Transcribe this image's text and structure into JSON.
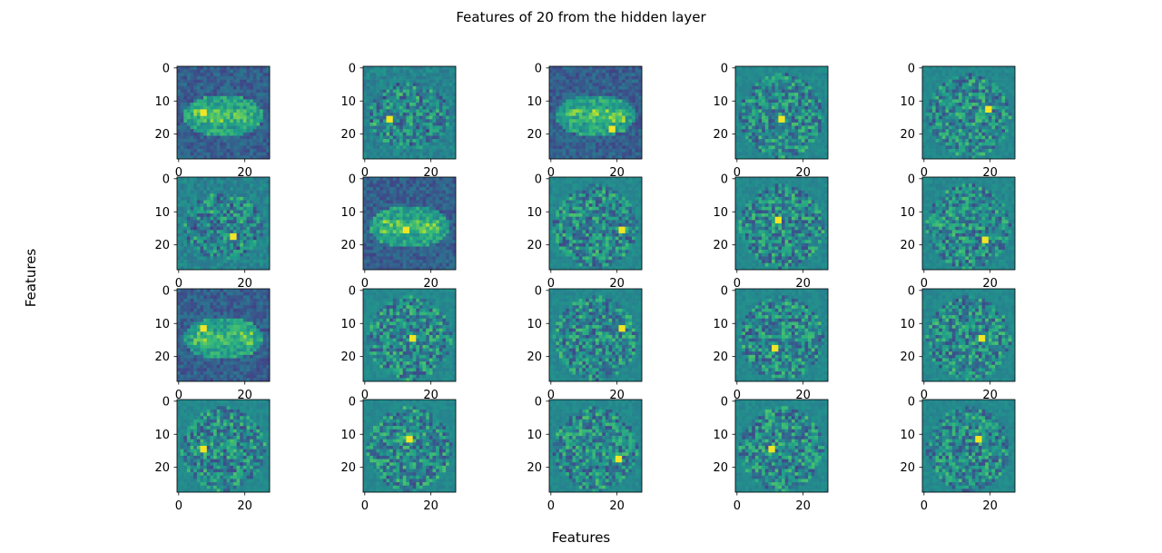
{
  "chart_data": {
    "type": "heatmap",
    "title": "Features of 20 from the hidden layer",
    "xlabel": "Features",
    "ylabel": "Features",
    "grid_rows": 4,
    "grid_cols": 5,
    "image_size": 28,
    "xlim": [
      -0.5,
      27.5
    ],
    "ylim": [
      27.5,
      -0.5
    ],
    "xticks": [
      0,
      20
    ],
    "yticks": [
      0,
      10,
      20
    ],
    "colormap": "viridis",
    "panels": [
      {
        "kind": "ring",
        "seed": 11
      },
      {
        "kind": "soft",
        "seed": 12
      },
      {
        "kind": "ring",
        "seed": 13
      },
      {
        "kind": "noise",
        "seed": 14
      },
      {
        "kind": "noise",
        "seed": 15
      },
      {
        "kind": "soft",
        "seed": 21
      },
      {
        "kind": "ring",
        "seed": 22
      },
      {
        "kind": "noise",
        "seed": 23
      },
      {
        "kind": "noise",
        "seed": 24
      },
      {
        "kind": "noise",
        "seed": 25
      },
      {
        "kind": "ring",
        "seed": 31
      },
      {
        "kind": "noise",
        "seed": 32
      },
      {
        "kind": "noise",
        "seed": 33
      },
      {
        "kind": "noise",
        "seed": 34
      },
      {
        "kind": "noise",
        "seed": 35
      },
      {
        "kind": "noise",
        "seed": 41
      },
      {
        "kind": "noise",
        "seed": 42
      },
      {
        "kind": "noise",
        "seed": 43
      },
      {
        "kind": "noise",
        "seed": 44
      },
      {
        "kind": "noise",
        "seed": 45
      }
    ]
  }
}
